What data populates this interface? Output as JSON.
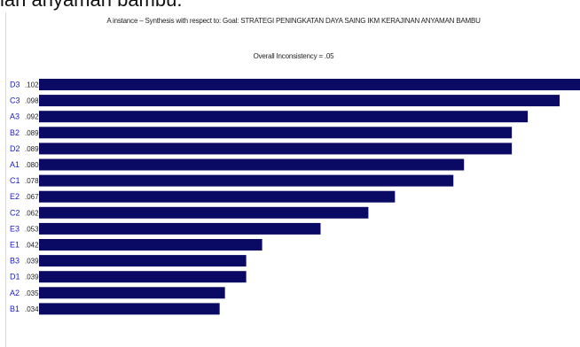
{
  "caption": "ian anyaman bambu.",
  "chart_data": {
    "type": "bar",
    "orientation": "horizontal",
    "title": "A instance – Synthesis with respect to: Goal: STRATEGI PENINGKATAN DAYA SAING IKM  KERAJINAN ANYAMAN BAMBU",
    "subtitle": "Overall Inconsistency = .05",
    "categories": [
      "D3",
      "C3",
      "A3",
      "B2",
      "D2",
      "A1",
      "C1",
      "E2",
      "C2",
      "E3",
      "E1",
      "B3",
      "D1",
      "A2",
      "B1"
    ],
    "value_labels": [
      ".102",
      ".098",
      ".092",
      ".089",
      ".089",
      ".080",
      ".078",
      ".067",
      ".062",
      ".053",
      ".042",
      ".039",
      ".039",
      ".035",
      ".034"
    ],
    "values": [
      0.102,
      0.098,
      0.092,
      0.089,
      0.089,
      0.08,
      0.078,
      0.067,
      0.062,
      0.053,
      0.042,
      0.039,
      0.039,
      0.035,
      0.034
    ],
    "xlim": [
      0,
      0.102
    ],
    "grid": false,
    "colors": {
      "bar": "#0a0a64",
      "category_label": "#1c1cc8",
      "value_label": "#222222"
    }
  }
}
